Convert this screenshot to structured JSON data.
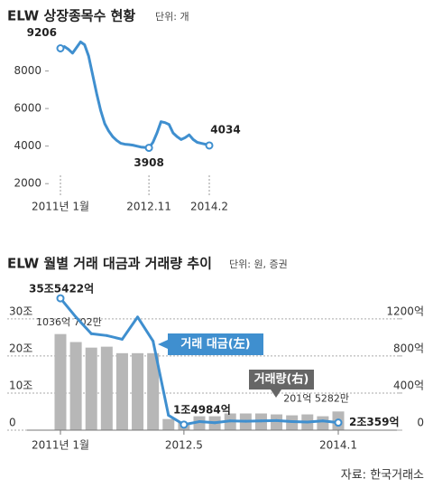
{
  "chart_data": [
    {
      "type": "line",
      "title": "ELW 상장종목수 현황",
      "subtitle": "단위: 개",
      "categories": [
        "2011년 1월",
        null,
        null,
        null,
        null,
        null,
        null,
        null,
        null,
        null,
        null,
        null,
        null,
        null,
        null,
        null,
        null,
        null,
        null,
        null,
        null,
        null,
        "2012.11",
        null,
        null,
        null,
        null,
        null,
        null,
        null,
        null,
        null,
        null,
        null,
        null,
        null,
        null,
        "2014.2"
      ],
      "series": [
        {
          "name": null,
          "color": "#3f8fcf",
          "values": [
            9206,
            9300,
            9150,
            8950,
            9250,
            9550,
            9400,
            8800,
            7800,
            6800,
            5900,
            5200,
            4800,
            4500,
            4300,
            4150,
            4100,
            4080,
            4050,
            4000,
            3950,
            3930,
            3908,
            4200,
            4700,
            5300,
            5250,
            5150,
            4700,
            4500,
            4350,
            4450,
            4600,
            4350,
            4200,
            4150,
            4100,
            4034
          ],
          "value_labels": [
            "9206",
            null,
            null,
            null,
            null,
            null,
            null,
            null,
            null,
            null,
            null,
            null,
            null,
            null,
            null,
            null,
            null,
            null,
            null,
            null,
            null,
            null,
            "3908",
            null,
            null,
            null,
            null,
            null,
            null,
            null,
            null,
            null,
            null,
            null,
            null,
            null,
            null,
            "4034"
          ]
        }
      ],
      "ylim": [
        1000,
        10000
      ],
      "yticks": [
        2000,
        4000,
        6000,
        8000
      ]
    },
    {
      "type": "combo",
      "title": "ELW 월별 거래 대금과 거래량 추이",
      "subtitle": "단위: 원, 증권",
      "categories": [
        "2011년 1월",
        null,
        null,
        null,
        null,
        null,
        null,
        null,
        "2012.5",
        null,
        null,
        null,
        null,
        null,
        null,
        null,
        null,
        null,
        "2014.1"
      ],
      "series": [
        {
          "name": "거래 대금(左)",
          "type": "line",
          "color": "#3f8fcf",
          "axis": "y",
          "values": [
            35.5422,
            30.5,
            26,
            25.5,
            24.5,
            30.5,
            24,
            4,
            1.4984,
            2.3,
            2.0,
            2.5,
            2.4,
            2.5,
            2.6,
            2.3,
            2.2,
            2.5,
            2.0359
          ],
          "value_labels": [
            "35조5422억",
            null,
            null,
            null,
            null,
            null,
            null,
            null,
            "1조4984억",
            null,
            null,
            null,
            null,
            null,
            null,
            null,
            null,
            null,
            "2조359억"
          ]
        },
        {
          "name": "거래량(右)",
          "type": "bar",
          "color": "#b7b7b7",
          "axis": "y2",
          "values": [
            1036.0702,
            950,
            890,
            900,
            830,
            830,
            830,
            120,
            80,
            150,
            150,
            180,
            180,
            180,
            170,
            160,
            170,
            150,
            201.5282
          ],
          "value_labels": [
            "1036억 702만",
            null,
            null,
            null,
            null,
            null,
            null,
            null,
            null,
            null,
            null,
            null,
            null,
            null,
            null,
            null,
            null,
            null,
            "201억 5282만"
          ]
        }
      ],
      "ylim": [
        0,
        38
      ],
      "yticks": [
        0,
        {
          "value": 10,
          "label": "10조"
        },
        {
          "value": 20,
          "label": "20조"
        },
        {
          "value": 30,
          "label": "30조"
        }
      ],
      "y2lim": [
        0,
        1520
      ],
      "y2ticks": [
        0,
        {
          "value": 400,
          "label": "400억"
        },
        {
          "value": 800,
          "label": "800억"
        },
        {
          "value": 1200,
          "label": "1200억"
        }
      ],
      "grid": true
    }
  ],
  "source": "자료: 한국거래소"
}
